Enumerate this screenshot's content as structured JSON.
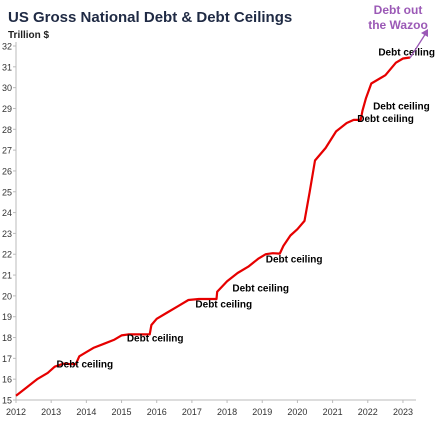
{
  "header": {
    "title": "US Gross National Debt & Debt Ceilings",
    "ylabel": "Trillion $"
  },
  "colors": {
    "line": "#e60000",
    "callout": "#9b59b6",
    "annotation": "#000000",
    "title": "#1f2a44"
  },
  "chart_data": {
    "type": "line",
    "title": "US Gross National Debt & Debt Ceilings",
    "ylabel": "Trillion $",
    "xlabel": "",
    "xlim": [
      2012,
      2023.2
    ],
    "ylim": [
      15,
      32
    ],
    "x_ticks": [
      2012,
      2013,
      2014,
      2015,
      2016,
      2017,
      2018,
      2019,
      2020,
      2021,
      2022,
      2023
    ],
    "y_ticks": [
      15,
      16,
      17,
      18,
      19,
      20,
      21,
      22,
      23,
      24,
      25,
      26,
      27,
      28,
      29,
      30,
      31,
      32
    ],
    "grid": false,
    "series": [
      {
        "values": [
          [
            2012.0,
            15.2
          ],
          [
            2012.3,
            15.6
          ],
          [
            2012.6,
            16.0
          ],
          [
            2012.9,
            16.3
          ],
          [
            2013.1,
            16.6
          ],
          [
            2013.35,
            16.75
          ],
          [
            2013.5,
            16.73
          ],
          [
            2013.7,
            16.72
          ],
          [
            2013.8,
            17.1
          ],
          [
            2014.0,
            17.3
          ],
          [
            2014.2,
            17.5
          ],
          [
            2014.5,
            17.7
          ],
          [
            2014.8,
            17.9
          ],
          [
            2015.0,
            18.1
          ],
          [
            2015.2,
            18.15
          ],
          [
            2015.5,
            18.15
          ],
          [
            2015.8,
            18.15
          ],
          [
            2015.85,
            18.6
          ],
          [
            2016.0,
            18.9
          ],
          [
            2016.3,
            19.2
          ],
          [
            2016.6,
            19.5
          ],
          [
            2016.9,
            19.8
          ],
          [
            2017.2,
            19.85
          ],
          [
            2017.5,
            19.85
          ],
          [
            2017.7,
            19.85
          ],
          [
            2017.72,
            20.2
          ],
          [
            2018.0,
            20.7
          ],
          [
            2018.3,
            21.1
          ],
          [
            2018.6,
            21.4
          ],
          [
            2018.9,
            21.8
          ],
          [
            2019.1,
            22.0
          ],
          [
            2019.3,
            22.05
          ],
          [
            2019.5,
            22.03
          ],
          [
            2019.6,
            22.4
          ],
          [
            2019.8,
            22.9
          ],
          [
            2020.0,
            23.2
          ],
          [
            2020.2,
            23.6
          ],
          [
            2020.35,
            25.0
          ],
          [
            2020.5,
            26.5
          ],
          [
            2020.8,
            27.1
          ],
          [
            2021.1,
            27.9
          ],
          [
            2021.4,
            28.3
          ],
          [
            2021.6,
            28.45
          ],
          [
            2021.8,
            28.45
          ],
          [
            2021.85,
            28.9
          ],
          [
            2021.95,
            29.5
          ],
          [
            2022.1,
            30.2
          ],
          [
            2022.5,
            30.6
          ],
          [
            2022.8,
            31.2
          ],
          [
            2023.0,
            31.4
          ],
          [
            2023.2,
            31.45
          ]
        ]
      }
    ],
    "annotations": [
      {
        "text": "Debt ceiling",
        "x": 2013.15,
        "y": 16.55
      },
      {
        "text": "Debt ceiling",
        "x": 2015.15,
        "y": 17.8
      },
      {
        "text": "Debt ceiling",
        "x": 2017.1,
        "y": 19.45
      },
      {
        "text": "Debt ceiling",
        "x": 2018.15,
        "y": 20.2
      },
      {
        "text": "Debt ceiling",
        "x": 2019.1,
        "y": 21.6
      },
      {
        "text": "Debt ceiling",
        "x": 2021.7,
        "y": 28.35
      },
      {
        "text": "Debt ceiling",
        "x": 2022.15,
        "y": 28.95
      },
      {
        "text": "Debt ceiling",
        "x": 2022.3,
        "y": 31.55
      }
    ],
    "callout": {
      "lines": [
        "Debt out",
        "the Wazoo"
      ]
    }
  }
}
